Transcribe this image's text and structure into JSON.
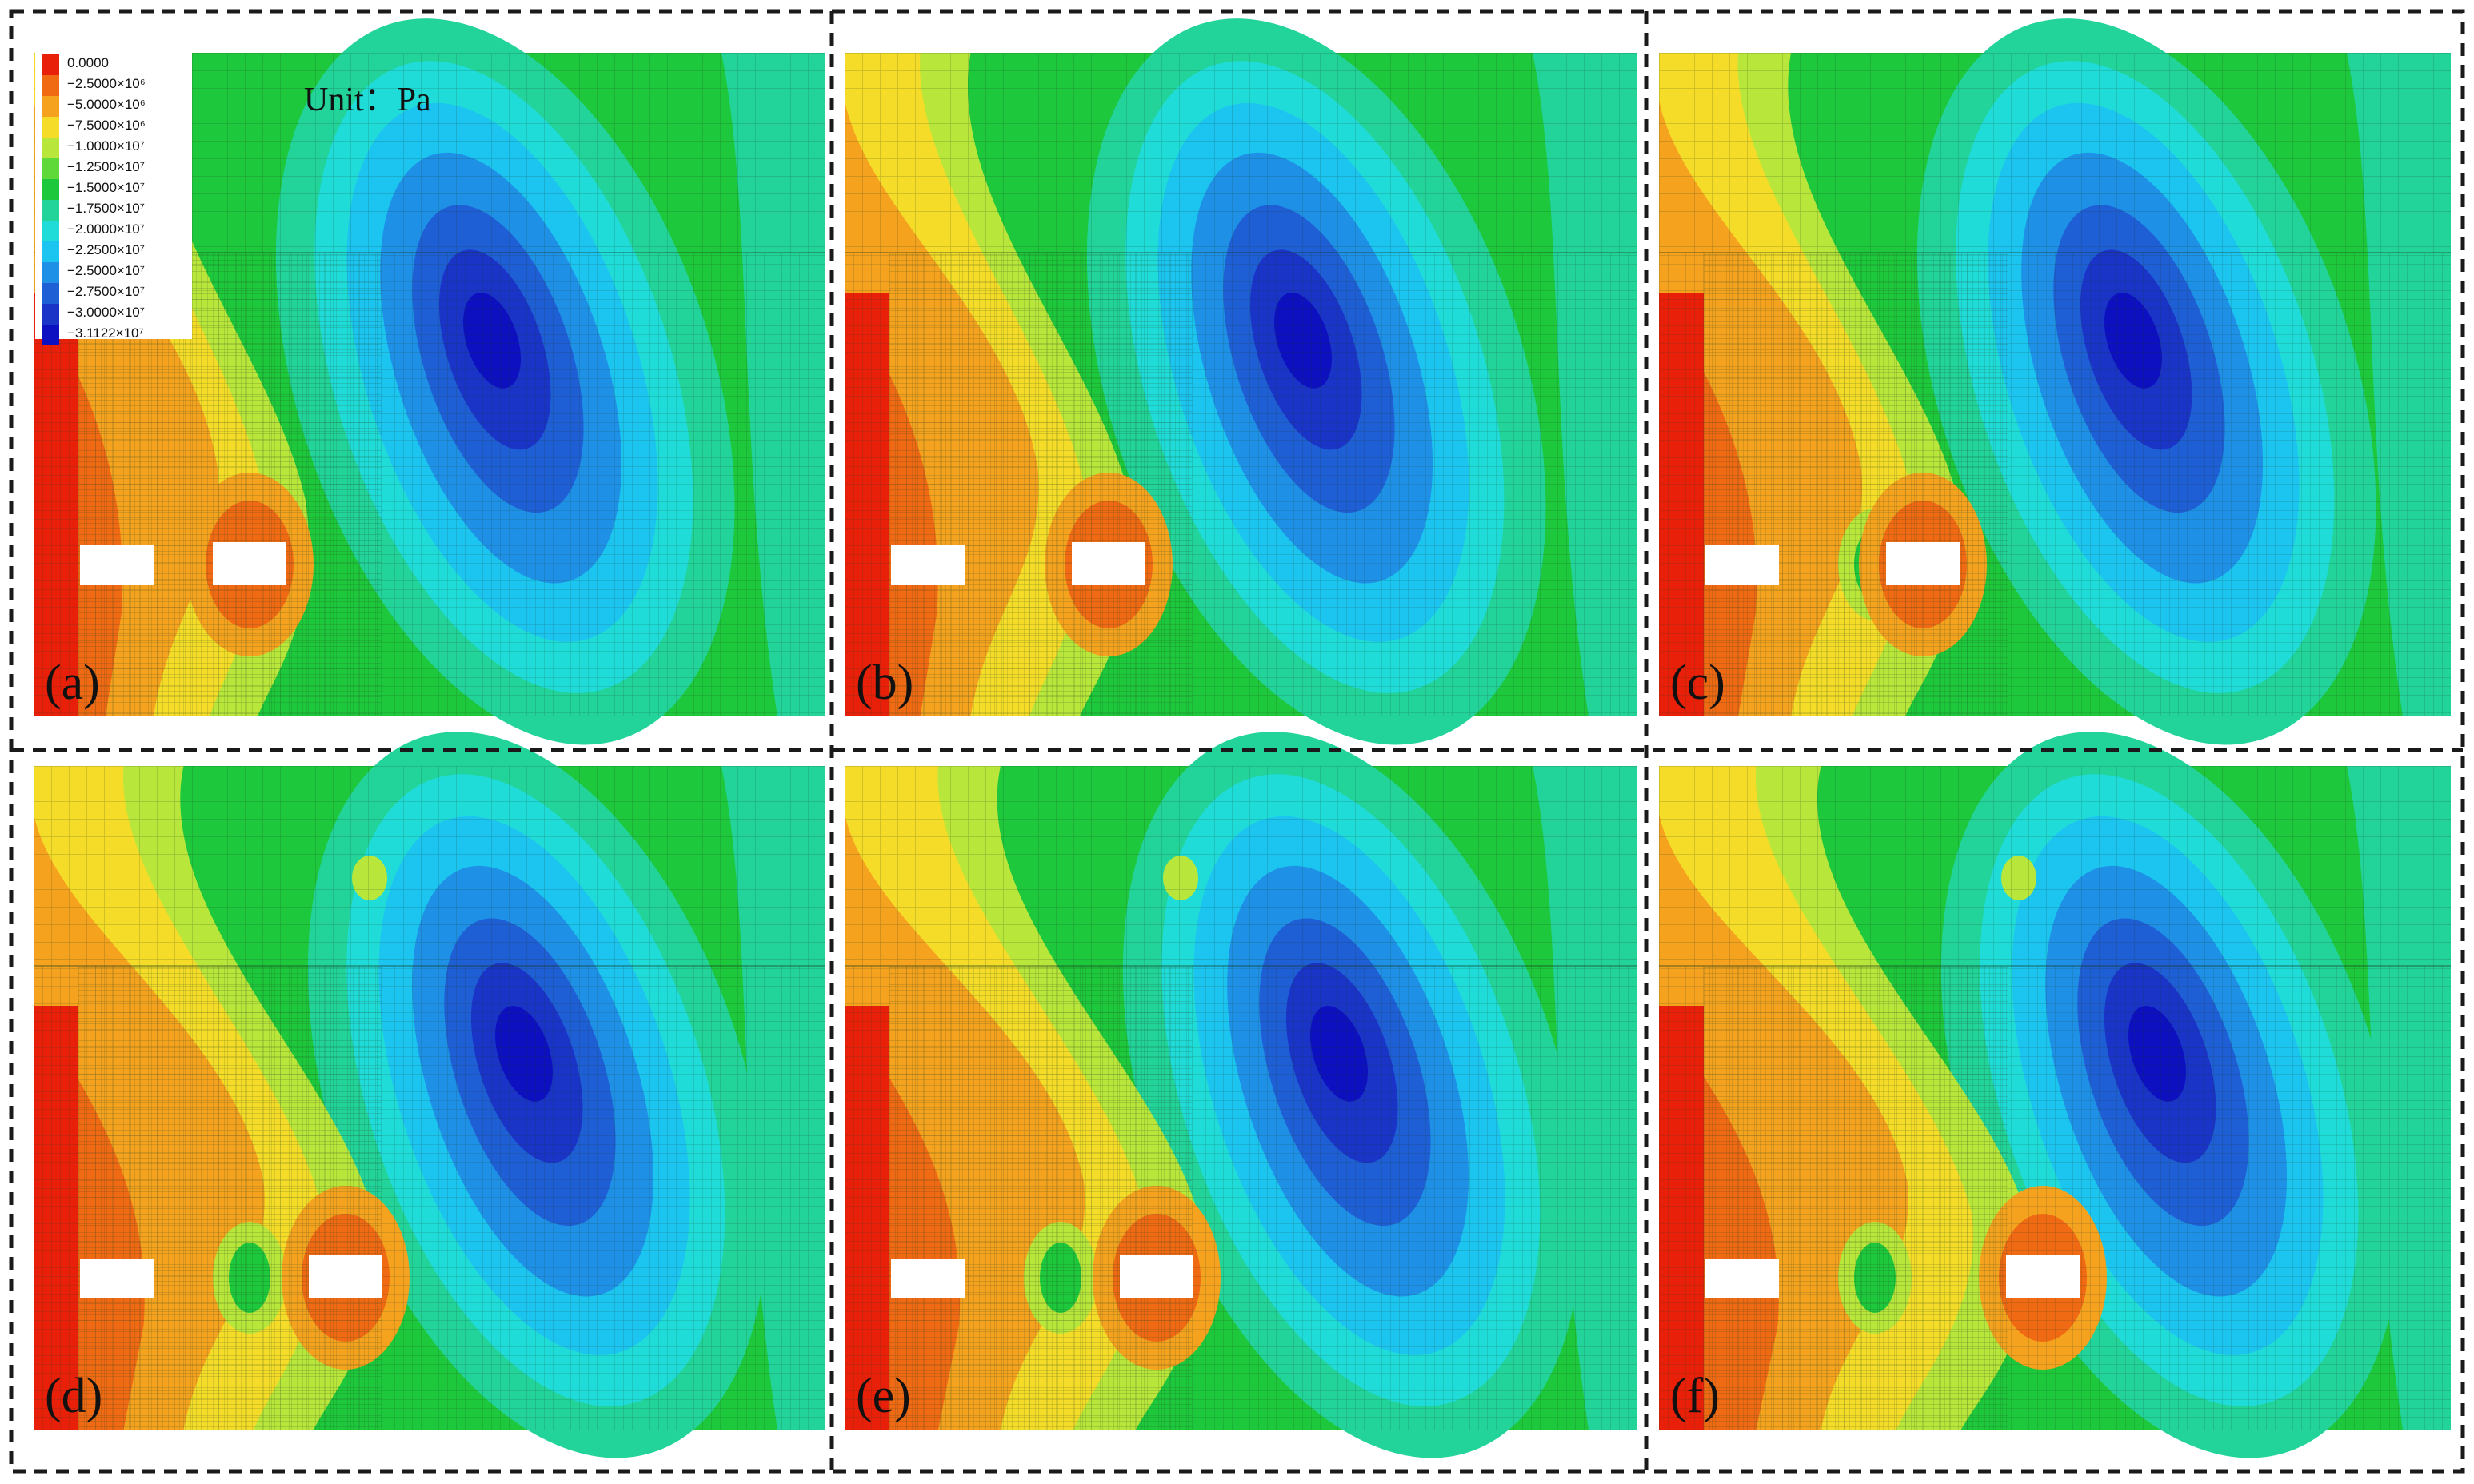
{
  "unit_label": "Unit：Pa",
  "legend": {
    "entries": [
      {
        "label": "0.0000",
        "color": "#e8200a"
      },
      {
        "label": "−2.5000×10⁶",
        "color": "#f06a14"
      },
      {
        "label": "−5.0000×10⁶",
        "color": "#f5a21e"
      },
      {
        "label": "−7.5000×10⁶",
        "color": "#f5dc28"
      },
      {
        "label": "−1.0000×10⁷",
        "color": "#b8e63a"
      },
      {
        "label": "−1.2500×10⁷",
        "color": "#5fd83a"
      },
      {
        "label": "−1.5000×10⁷",
        "color": "#1ec83c"
      },
      {
        "label": "−1.7500×10⁷",
        "color": "#22d39a"
      },
      {
        "label": "−2.0000×10⁷",
        "color": "#20dcd8"
      },
      {
        "label": "−2.2500×10⁷",
        "color": "#1cc4f0"
      },
      {
        "label": "−2.5000×10⁷",
        "color": "#1e90e6"
      },
      {
        "label": "−2.7500×10⁷",
        "color": "#1f5fd6"
      },
      {
        "label": "−3.0000×10⁷",
        "color": "#1a34c8"
      },
      {
        "label": "−3.1122×10⁷",
        "color": "#0c10c0"
      }
    ]
  },
  "panels": [
    {
      "label": "(a)"
    },
    {
      "label": "(b)"
    },
    {
      "label": "(c)"
    },
    {
      "label": "(d)"
    },
    {
      "label": "(e)"
    },
    {
      "label": "(f)"
    }
  ],
  "colors": {
    "background_green": "#20c83a",
    "frame": "#1a1a1a",
    "mesh": "#1b3a1b",
    "opening": "#ffffff"
  }
}
